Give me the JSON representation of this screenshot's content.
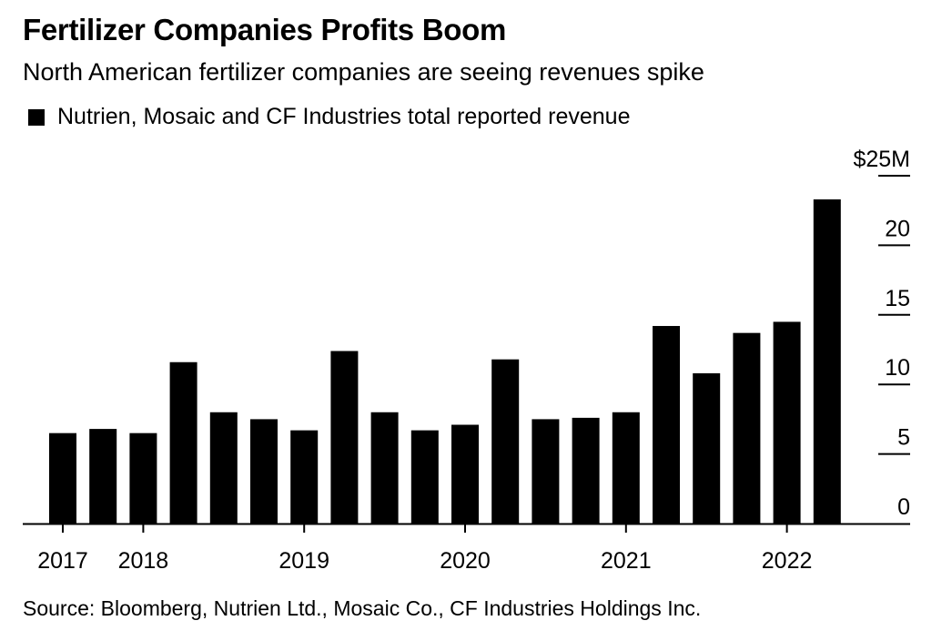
{
  "header": {
    "title": "Fertilizer Companies Profits Boom",
    "subtitle": "North American fertilizer companies are seeing revenues spike"
  },
  "footer": {
    "source": "Source: Bloomberg, Nutrien Ltd., Mosaic Co., CF Industries Holdings Inc."
  },
  "chart_data": {
    "type": "bar",
    "title": "Fertilizer Companies Profits Boom",
    "subtitle": "North American fertilizer companies are seeing revenues spike",
    "legend_position": "top-left",
    "categories": [
      "2017 Q3",
      "2017 Q4",
      "2018 Q1",
      "2018 Q2",
      "2018 Q3",
      "2018 Q4",
      "2019 Q1",
      "2019 Q2",
      "2019 Q3",
      "2019 Q4",
      "2020 Q1",
      "2020 Q2",
      "2020 Q3",
      "2020 Q4",
      "2021 Q1",
      "2021 Q2",
      "2021 Q3",
      "2021 Q4",
      "2022 Q1",
      "2022 Q2"
    ],
    "x_tick_labels": [
      {
        "label": "2017",
        "category": "2017 Q3"
      },
      {
        "label": "2018",
        "category": "2018 Q1"
      },
      {
        "label": "2019",
        "category": "2019 Q1"
      },
      {
        "label": "2020",
        "category": "2020 Q1"
      },
      {
        "label": "2021",
        "category": "2021 Q1"
      },
      {
        "label": "2022",
        "category": "2022 Q1"
      }
    ],
    "series": [
      {
        "name": "Nutrien, Mosaic and CF Industries total reported revenue",
        "color": "#000000",
        "values": [
          6.5,
          6.8,
          6.5,
          11.6,
          8.0,
          7.5,
          6.7,
          12.4,
          8.0,
          6.7,
          7.1,
          11.8,
          7.5,
          7.6,
          8.0,
          14.2,
          10.8,
          13.7,
          14.5,
          23.3
        ]
      }
    ],
    "ylim": [
      0,
      25
    ],
    "y_ticks": [
      {
        "value": 0,
        "label": "0"
      },
      {
        "value": 5,
        "label": "5"
      },
      {
        "value": 10,
        "label": "10"
      },
      {
        "value": 15,
        "label": "15"
      },
      {
        "value": 20,
        "label": "20"
      },
      {
        "value": 25,
        "label": "$25M"
      }
    ],
    "y_axis_side": "right",
    "grid": false
  }
}
